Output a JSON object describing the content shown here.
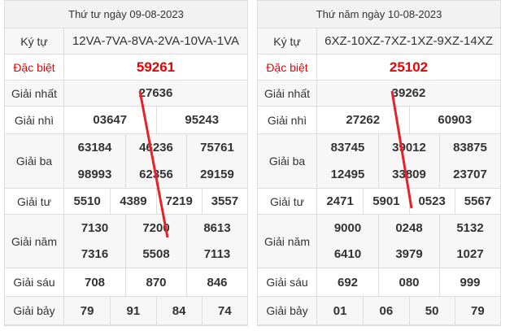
{
  "tables": [
    {
      "title": "Thứ tư ngày 09-08-2023",
      "rows": [
        {
          "label": "Ký tự",
          "values": [
            "12VA-7VA-8VA-2VA-10VA-1VA"
          ]
        },
        {
          "label": "Đặc biệt",
          "values": [
            "59261"
          ]
        },
        {
          "label": "Giải nhất",
          "values": [
            "27636"
          ]
        },
        {
          "label": "Giải nhì",
          "values": [
            "03647",
            "95243"
          ]
        },
        {
          "label": "Giải ba",
          "values": [
            "63184",
            "46236",
            "75761",
            "98993",
            "62356",
            "29159"
          ]
        },
        {
          "label": "Giải tư",
          "values": [
            "5510",
            "4389",
            "7219",
            "3557"
          ]
        },
        {
          "label": "Giải năm",
          "values": [
            "7130",
            "7200",
            "8613",
            "7316",
            "5508",
            "7113"
          ]
        },
        {
          "label": "Giải sáu",
          "values": [
            "708",
            "870",
            "846"
          ]
        },
        {
          "label": "Giải bảy",
          "values": [
            "79",
            "91",
            "84",
            "74"
          ]
        }
      ]
    },
    {
      "title": "Thứ năm ngày 10-08-2023",
      "rows": [
        {
          "label": "Ký tự",
          "values": [
            "6XZ-10XZ-7XZ-1XZ-9XZ-14XZ"
          ]
        },
        {
          "label": "Đặc biệt",
          "values": [
            "25102"
          ]
        },
        {
          "label": "Giải nhất",
          "values": [
            "39262"
          ]
        },
        {
          "label": "Giải nhì",
          "values": [
            "27262",
            "60903"
          ]
        },
        {
          "label": "Giải ba",
          "values": [
            "83745",
            "39012",
            "83875",
            "12495",
            "33809",
            "23707"
          ]
        },
        {
          "label": "Giải tư",
          "values": [
            "2471",
            "5901",
            "0523",
            "5567"
          ]
        },
        {
          "label": "Giải năm",
          "values": [
            "9000",
            "0248",
            "5132",
            "6410",
            "3979",
            "1027"
          ]
        },
        {
          "label": "Giải sáu",
          "values": [
            "692",
            "080",
            "999"
          ]
        },
        {
          "label": "Giải bảy",
          "values": [
            "01",
            "06",
            "50",
            "79"
          ]
        }
      ]
    }
  ]
}
